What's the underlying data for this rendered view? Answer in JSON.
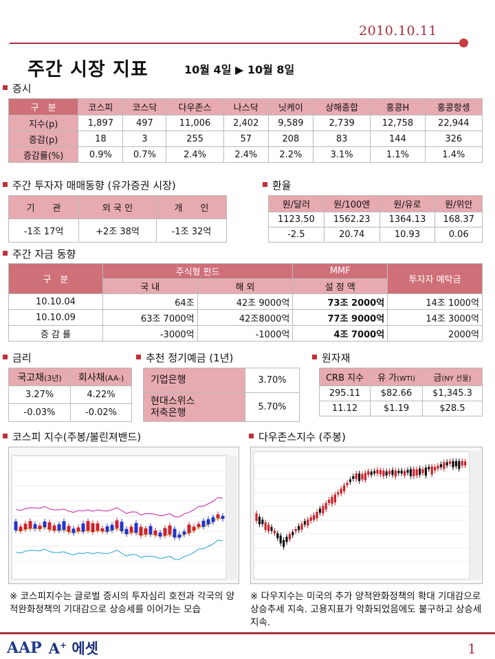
{
  "date": "2010.10.11",
  "title": "주간 시장 지표",
  "subtitle": "10월 4일 ▶ 10월 8일",
  "sections": {
    "stock": "증시",
    "investor": "주간 투자자 매매동향 (유가증권 시장)",
    "fx": "환율",
    "fund": "주간 자금 동향",
    "rate": "금리",
    "deposit": "추천 정기예금 (1년)",
    "commodity": "원자재",
    "kospi_chart": "코스피 지수(주봉/볼린져밴드)",
    "dow_chart": "다우존스지수 (주봉)"
  },
  "stock_table": {
    "header": [
      "구　분",
      "코스피",
      "코스닥",
      "다우존스",
      "나스닥",
      "닛케이",
      "상해종합",
      "홍콩H",
      "홍콩항셍"
    ],
    "rows": [
      [
        "지수(p)",
        "1,897",
        "497",
        "11,006",
        "2,402",
        "9,589",
        "2,739",
        "12,758",
        "22,944"
      ],
      [
        "증감(p)",
        "18",
        "3",
        "255",
        "57",
        "208",
        "83",
        "144",
        "326"
      ],
      [
        "증감률(%)",
        "0.9%",
        "0.7%",
        "2.4%",
        "2.4%",
        "2.2%",
        "3.1%",
        "1.1%",
        "1.4%"
      ]
    ]
  },
  "investor_table": {
    "header": [
      "기　　관",
      "외 국 인",
      "개　　인"
    ],
    "row": [
      "-1조 17억",
      "+2조 38억",
      "-1조 32억"
    ]
  },
  "fx_table": {
    "header": [
      "원/달러",
      "원/100엔",
      "원/유로",
      "원/위안"
    ],
    "rows": [
      [
        "1123.50",
        "1562.23",
        "1364.13",
        "168.37"
      ],
      [
        "-2.5",
        "20.74",
        "10.93",
        "0.06"
      ]
    ]
  },
  "fund_table": {
    "h_gubun": "구　분",
    "h_equity": "주식형 펀드",
    "h_mmf": "MMF",
    "h_deposit": "투자자 예탁금",
    "h_domestic": "국 내",
    "h_overseas": "해 외",
    "h_setting": "설 정 액",
    "rows": [
      [
        "10.10.04",
        "64조",
        "42조 9000억",
        "73조 2000억",
        "14조 1000억"
      ],
      [
        "10.10.09",
        "63조 7000억",
        "42조8000억",
        "77조 9000억",
        "14조 3000억"
      ],
      [
        "증 감 률",
        "-3000억",
        "-1000억",
        "4조 7000억",
        "2000억"
      ]
    ]
  },
  "rate_table": {
    "header": [
      "국고채",
      "(3년)",
      "회사채",
      "(AA-)"
    ],
    "rows": [
      [
        "3.27%",
        "4.22%"
      ],
      [
        "-0.03%",
        "-0.02%"
      ]
    ]
  },
  "deposit_table": {
    "rows": [
      [
        "기업은행",
        "3.70%"
      ],
      [
        "현대스위스\n저축은행",
        "5.70%"
      ]
    ]
  },
  "commodity_table": {
    "header": [
      "CRB 지수",
      "유 가",
      "(WTI)",
      "금",
      "(NY 선물)"
    ],
    "rows": [
      [
        "295.11",
        "$82.66",
        "$1,345.3"
      ],
      [
        "11.12",
        "$1.19",
        "$28.5"
      ]
    ]
  },
  "notes": {
    "kospi": "※ 코스피지수는 글로벌 증시의 투자심리 호전과 각국의 양적완화정책의 기대감으로 상승세를 이어가는 모습",
    "dow": "※ 다우지수는 미국의 추가 양적완화정책의 확대 기대감으로 상승추세 지속. 고용지표가 악화되었음에도 불구하고 상승세 지속."
  },
  "footer": {
    "logo_mark": "AAP",
    "logo_text": "A",
    "logo_sup": "+",
    "logo_word": "에셋",
    "page": "1"
  },
  "colors": {
    "accent": "#a4303a",
    "header_pink": "#e7aab0",
    "header_dark": "#cf6f78",
    "candle_up": "#d0202a",
    "candle_down": "#2233cc"
  }
}
